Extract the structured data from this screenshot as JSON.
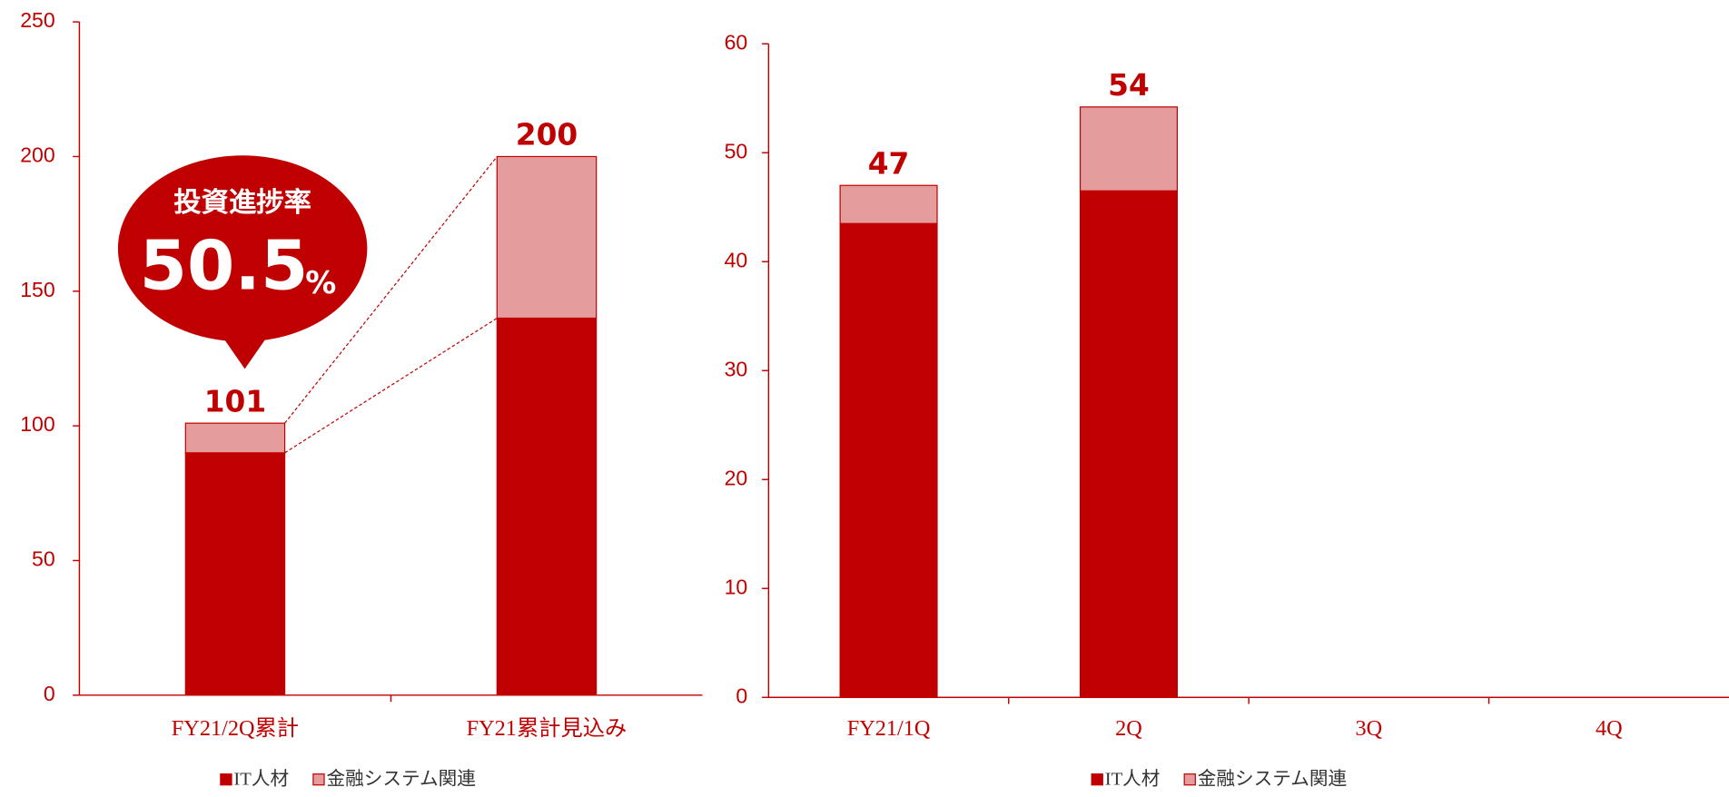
{
  "chart_data": [
    {
      "type": "bar",
      "stacked": true,
      "categories": [
        "FY21/2Q累計",
        "FY21累計見込み"
      ],
      "series": [
        {
          "name": "IT人材",
          "color": "#c00000",
          "values": [
            90,
            140
          ]
        },
        {
          "name": "金融システム関連",
          "color": "#e59c9c",
          "values": [
            11,
            60
          ]
        }
      ],
      "totals": [
        101,
        200
      ],
      "ylim": [
        0,
        250
      ],
      "yticks": [
        0,
        50,
        100,
        150,
        200,
        250
      ],
      "annotation": {
        "title": "投資進捗率",
        "value": "50.5",
        "unit": "%"
      }
    },
    {
      "type": "bar",
      "stacked": true,
      "categories": [
        "FY21/1Q",
        "2Q",
        "3Q",
        "4Q"
      ],
      "series": [
        {
          "name": "IT人材",
          "color": "#c00000",
          "values": [
            43.5,
            46.5,
            null,
            null
          ]
        },
        {
          "name": "金融システム関連",
          "color": "#e59c9c",
          "values": [
            3.5,
            7.7,
            null,
            null
          ]
        }
      ],
      "totals": [
        47,
        54,
        null,
        null
      ],
      "ylim": [
        0,
        60
      ],
      "yticks": [
        0,
        10,
        20,
        30,
        40,
        50,
        60
      ]
    }
  ]
}
